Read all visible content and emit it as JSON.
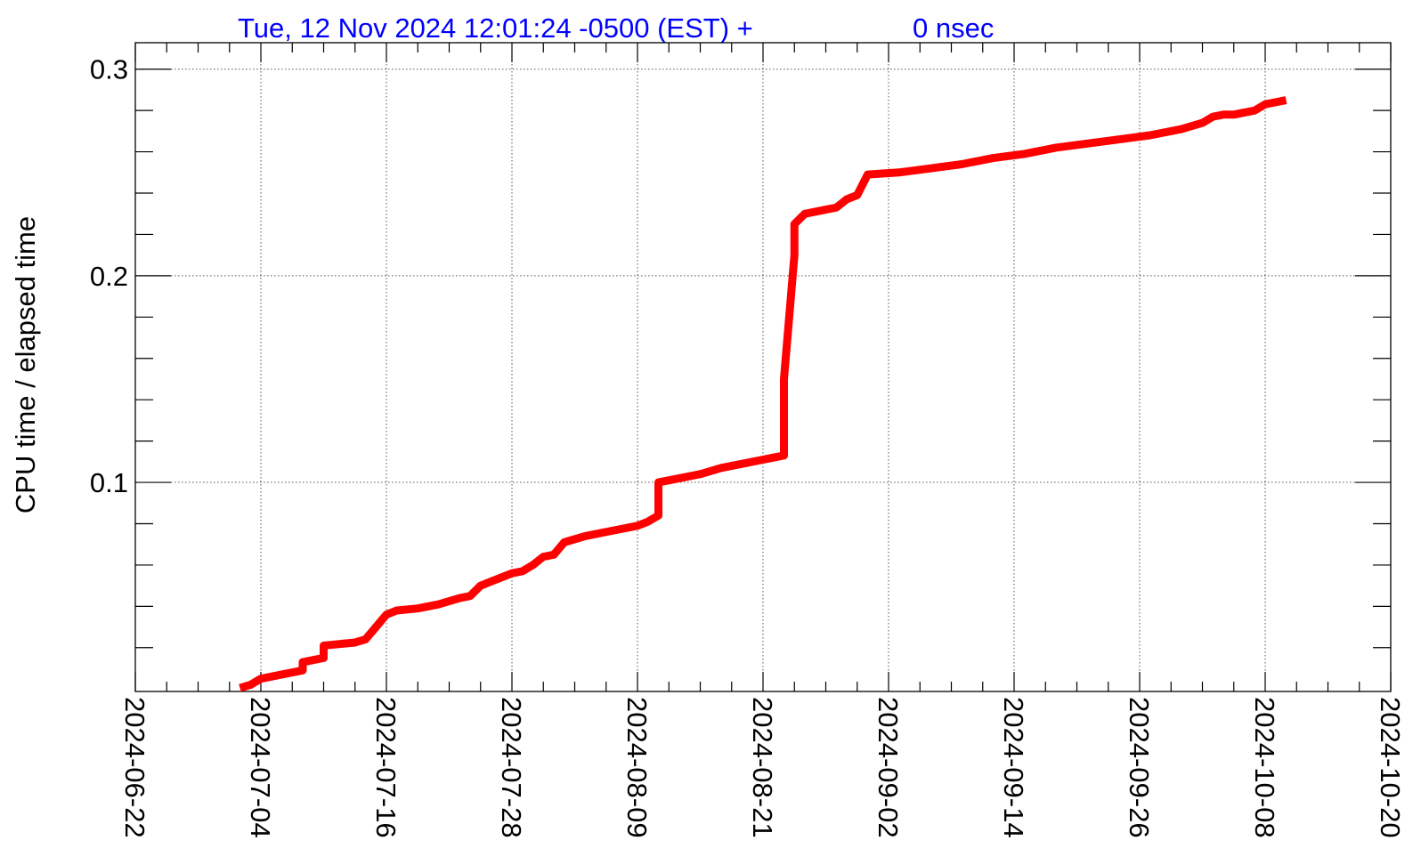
{
  "colors": {
    "title": "#0000ff",
    "series": "#ff0000",
    "axes": "#000000",
    "grid": "#555555"
  },
  "title": {
    "timestamp": "Tue, 12 Nov 2024 12:01:24 -0500 (EST) +",
    "offset": "0 nsec"
  },
  "chart_data": {
    "type": "line",
    "title": "Tue, 12 Nov 2024 12:01:24 -0500 (EST) +        0 nsec",
    "xlabel": "",
    "ylabel": "CPU time / elapsed time",
    "x_is_date": true,
    "xlim": [
      "2024-06-22",
      "2024-10-20"
    ],
    "ylim": [
      -0.0012,
      0.3128
    ],
    "xticks": [
      "2024-06-22",
      "2024-07-04",
      "2024-07-16",
      "2024-07-28",
      "2024-08-09",
      "2024-08-21",
      "2024-09-02",
      "2024-09-14",
      "2024-09-26",
      "2024-10-08",
      "2024-10-20"
    ],
    "yticks": [
      0.1,
      0.2,
      0.3
    ],
    "ytick_labels": [
      "0.1",
      "0.2",
      "0.3"
    ],
    "grid": true,
    "series": [
      {
        "color": "#ff0000",
        "x": [
          "2024-07-02",
          "2024-07-03",
          "2024-07-04",
          "2024-07-05",
          "2024-07-06",
          "2024-07-07",
          "2024-07-08",
          "2024-07-08",
          "2024-07-09",
          "2024-07-10",
          "2024-07-10",
          "2024-07-11",
          "2024-07-12",
          "2024-07-13",
          "2024-07-14",
          "2024-07-15",
          "2024-07-16",
          "2024-07-17",
          "2024-07-19",
          "2024-07-21",
          "2024-07-23",
          "2024-07-24",
          "2024-07-25",
          "2024-07-26",
          "2024-07-27",
          "2024-07-28",
          "2024-07-29",
          "2024-07-30",
          "2024-07-31",
          "2024-08-01",
          "2024-08-02",
          "2024-08-04",
          "2024-08-06",
          "2024-08-08",
          "2024-08-09",
          "2024-08-10",
          "2024-08-11",
          "2024-08-11",
          "2024-08-13",
          "2024-08-15",
          "2024-08-17",
          "2024-08-19",
          "2024-08-21",
          "2024-08-22",
          "2024-08-23",
          "2024-08-23",
          "2024-08-23",
          "2024-08-24",
          "2024-08-24",
          "2024-08-25",
          "2024-08-27",
          "2024-08-28",
          "2024-08-29",
          "2024-08-30",
          "2024-08-31",
          "2024-09-03",
          "2024-09-06",
          "2024-09-09",
          "2024-09-12",
          "2024-09-15",
          "2024-09-18",
          "2024-09-21",
          "2024-09-24",
          "2024-09-27",
          "2024-09-30",
          "2024-10-02",
          "2024-10-03",
          "2024-10-04",
          "2024-10-05",
          "2024-10-06",
          "2024-10-07",
          "2024-10-08",
          "2024-10-09",
          "2024-10-10"
        ],
        "y": [
          0.0005,
          0.002,
          0.005,
          0.006,
          0.007,
          0.008,
          0.009,
          0.013,
          0.014,
          0.015,
          0.021,
          0.0215,
          0.022,
          0.0225,
          0.024,
          0.03,
          0.036,
          0.038,
          0.039,
          0.041,
          0.044,
          0.045,
          0.05,
          0.052,
          0.054,
          0.056,
          0.057,
          0.06,
          0.064,
          0.065,
          0.071,
          0.074,
          0.076,
          0.078,
          0.079,
          0.081,
          0.084,
          0.1,
          0.102,
          0.104,
          0.107,
          0.109,
          0.111,
          0.112,
          0.113,
          0.135,
          0.15,
          0.21,
          0.225,
          0.23,
          0.232,
          0.233,
          0.237,
          0.239,
          0.249,
          0.25,
          0.252,
          0.254,
          0.257,
          0.259,
          0.262,
          0.264,
          0.266,
          0.268,
          0.271,
          0.274,
          0.277,
          0.278,
          0.278,
          0.279,
          0.28,
          0.283,
          0.284,
          0.285
        ]
      }
    ]
  }
}
